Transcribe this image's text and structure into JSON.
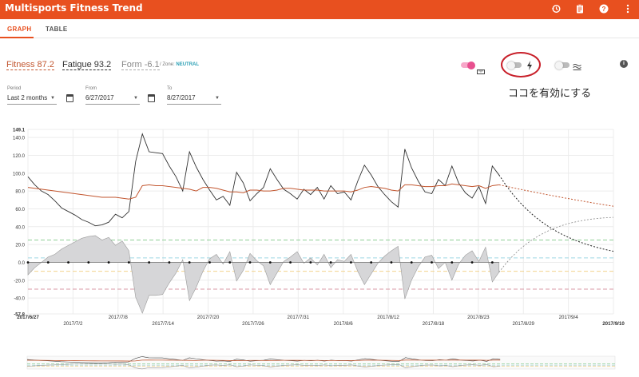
{
  "app": {
    "title": "Multisports Fitness Trend"
  },
  "toolbar_icons": [
    "history-icon",
    "clipboard-icon",
    "help-icon",
    "more-vert-icon"
  ],
  "tabs": [
    {
      "label": "GRAPH",
      "active": true
    },
    {
      "label": "TABLE",
      "active": false
    }
  ],
  "metrics": {
    "fitness": "Fitness 87.2",
    "fatigue": "Fatigue 93.2",
    "form": "Form -6.1",
    "zone_prefix": "/ Zone:",
    "zone_value": "NEUTRAL"
  },
  "filters": {
    "period": {
      "label": "Period",
      "value": "Last 2 months"
    },
    "from": {
      "label": "From",
      "value": "6/27/2017"
    },
    "to": {
      "label": "To",
      "value": "8/27/2017"
    }
  },
  "toggles": [
    {
      "name": "training-load-toggle",
      "on": true,
      "icon": "ruler-icon"
    },
    {
      "name": "power-toggle",
      "on": false,
      "icon": "lightning-icon"
    },
    {
      "name": "swim-toggle",
      "on": false,
      "icon": "waves-icon"
    }
  ],
  "annotation": {
    "text": "ココを有効にする"
  },
  "colors": {
    "accent": "#e8501f",
    "fitness": "#c2562f",
    "zone": "#2a9fb4",
    "annotation": "#c8202a"
  },
  "chart_data": {
    "type": "line",
    "x_tick_labels": [
      "2017/6/27",
      "2017/7/2",
      "2017/7/8",
      "2017/7/14",
      "2017/7/20",
      "2017/7/26",
      "2017/7/31",
      "2017/8/6",
      "2017/8/12",
      "2017/8/18",
      "2017/8/23",
      "2017/8/29",
      "2017/9/4",
      "2017/9/10"
    ],
    "y_tick_labels": [
      "149.1",
      "140.0",
      "120.0",
      "100.0",
      "80.0",
      "60.0",
      "40.0",
      "20.0",
      "0.0",
      "-20.0",
      "-40.0",
      "-57.8"
    ],
    "ylim": [
      -57.8,
      149.1
    ],
    "grid": true,
    "forecast_days": 17,
    "series": [
      {
        "values": [
          96,
          87,
          80,
          76,
          69,
          61,
          57,
          53,
          48,
          45,
          41,
          42,
          45,
          54,
          50,
          57,
          113,
          144,
          124,
          123,
          122,
          108,
          96,
          80,
          124,
          107,
          93,
          81,
          70,
          74,
          64,
          101,
          89,
          69,
          77,
          84,
          105,
          93,
          82,
          77,
          71,
          82,
          76,
          84,
          71,
          86,
          77,
          79,
          70,
          91,
          109,
          98,
          85,
          76,
          68,
          62,
          127,
          106,
          91,
          79,
          77,
          93,
          86,
          108,
          89,
          78,
          72,
          85,
          66,
          108,
          98
        ]
      },
      {
        "values": [
          84,
          83,
          82,
          81,
          80,
          79,
          78,
          77,
          76,
          75,
          74,
          73,
          73,
          73,
          72,
          71,
          73,
          86,
          87,
          86,
          86,
          85,
          84,
          83,
          82,
          80,
          84,
          84,
          83,
          81,
          79,
          79,
          78,
          81,
          81,
          80,
          80,
          81,
          83,
          83,
          82,
          81,
          81,
          81,
          80,
          80,
          80,
          80,
          79,
          81,
          84,
          85,
          84,
          83,
          81,
          80,
          87,
          87,
          86,
          85,
          85,
          86,
          86,
          88,
          87,
          86,
          85,
          86,
          83,
          86,
          87
        ]
      },
      {
        "values": [
          -14,
          -6,
          0,
          6,
          9,
          15,
          19,
          23,
          27,
          29,
          30,
          25,
          28,
          19,
          24,
          13,
          -39,
          -57,
          -37,
          -37,
          -36,
          -23,
          -12,
          3,
          -43,
          -28,
          -10,
          4,
          9,
          -2,
          12,
          -21,
          -9,
          10,
          2,
          -4,
          -25,
          -12,
          1,
          6,
          12,
          -1,
          5,
          -3,
          9,
          -6,
          3,
          1,
          9,
          -10,
          -25,
          -13,
          -1,
          7,
          13,
          18,
          -41,
          -20,
          -5,
          6,
          8,
          -7,
          0,
          -20,
          -2,
          8,
          13,
          1,
          17,
          -22,
          -11
        ]
      }
    ]
  }
}
